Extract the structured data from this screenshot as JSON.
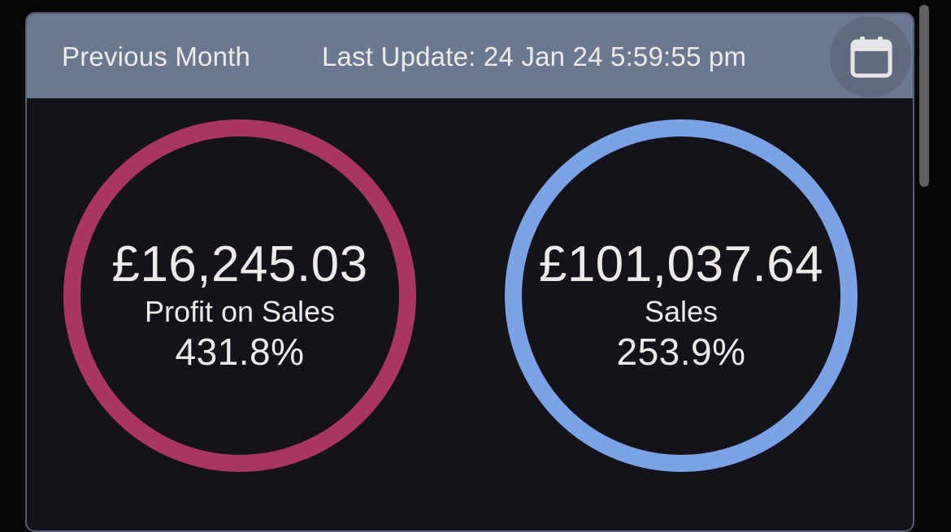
{
  "header": {
    "period": "Previous Month",
    "last_update": "Last Update: 24 Jan 24 5:59:55 pm",
    "calendar_icon": "calendar-icon"
  },
  "metrics": [
    {
      "amount": "£16,245.03",
      "label": "Profit on Sales",
      "percent": "431.8%",
      "ring_color": "#a93660"
    },
    {
      "amount": "£101,037.64",
      "label": "Sales",
      "percent": "253.9%",
      "ring_color": "#7aa3e6"
    }
  ],
  "colors": {
    "header_bg": "#6b7891",
    "card_bg": "#141319",
    "text": "#eeeaea"
  }
}
